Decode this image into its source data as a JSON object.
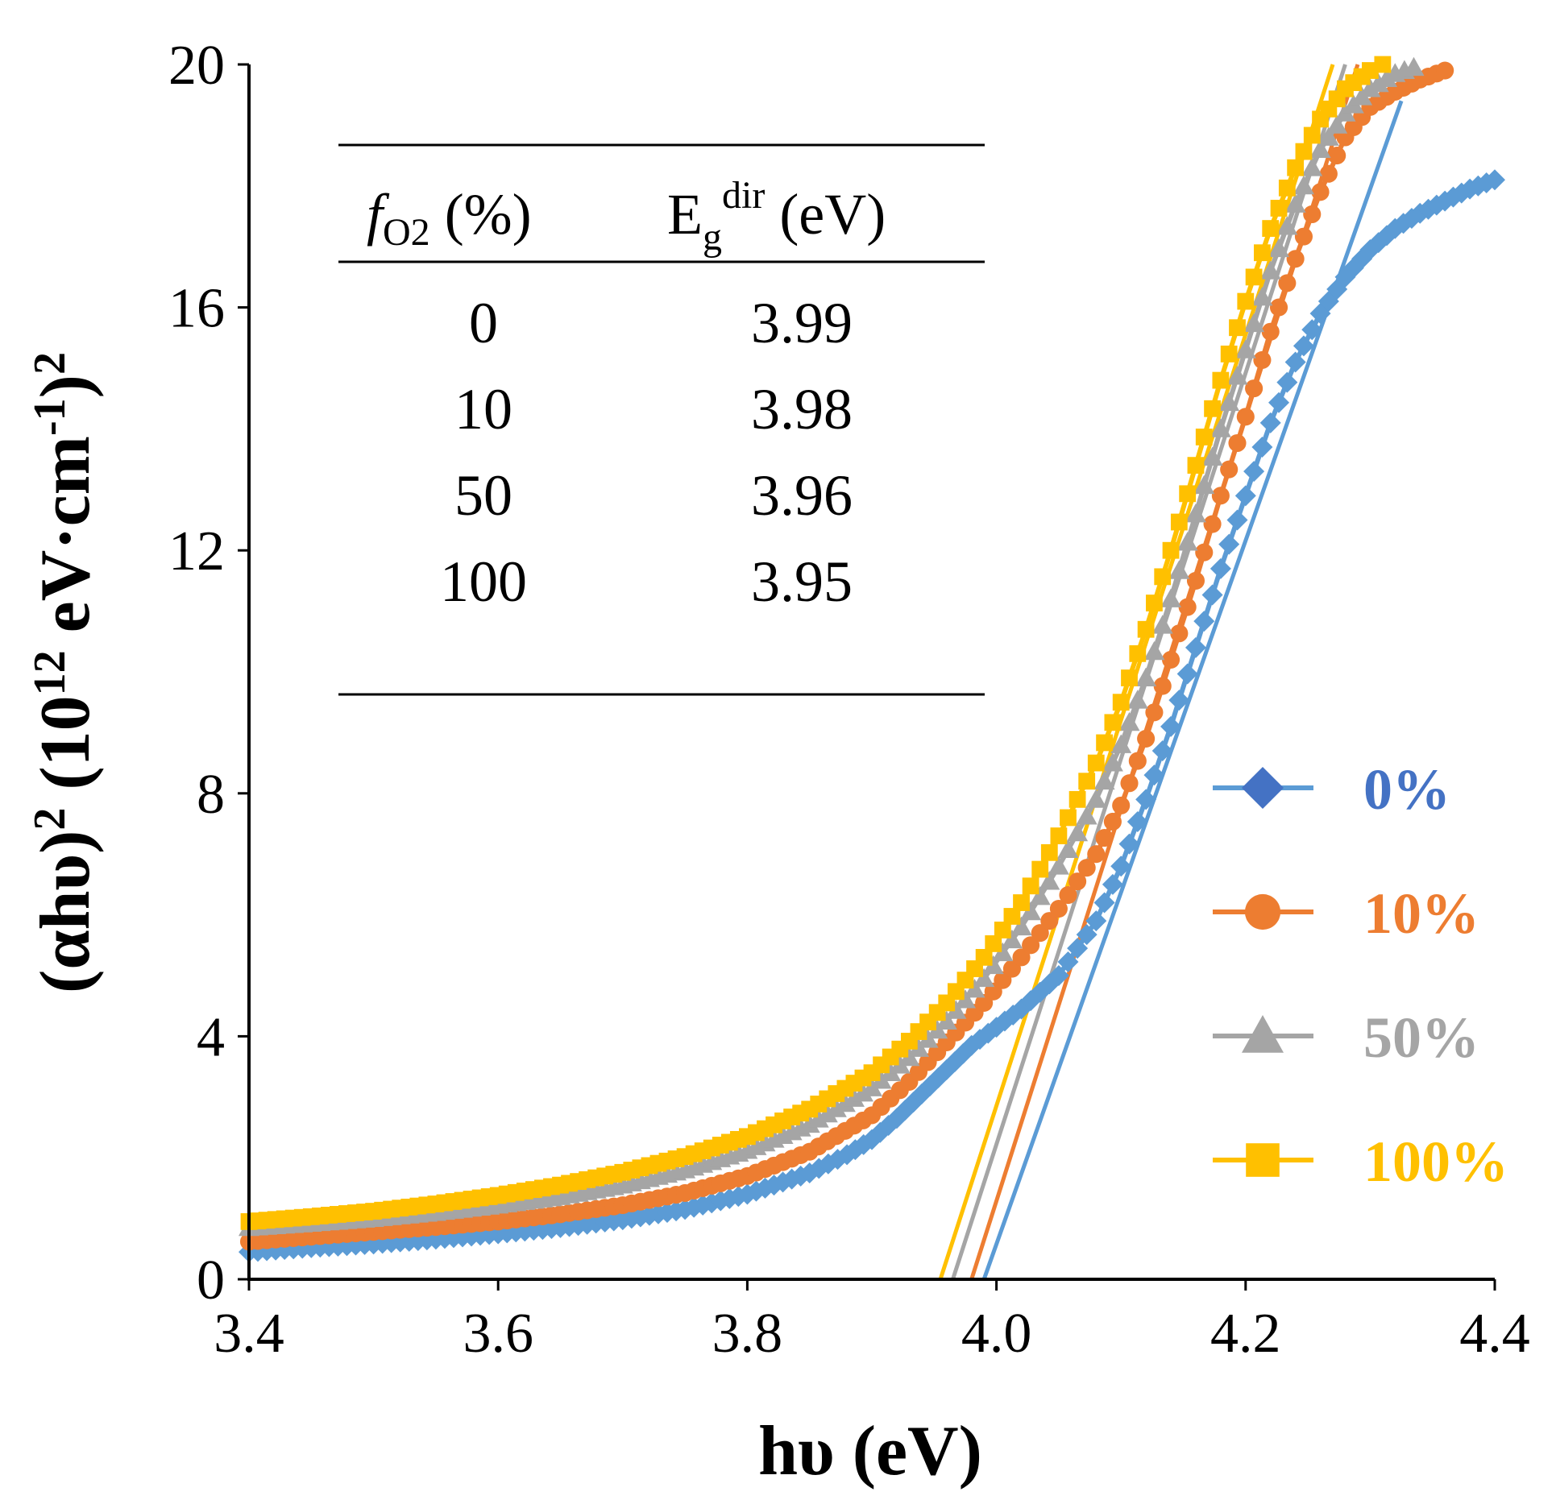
{
  "chart_data": {
    "type": "line",
    "xlabel": "hυ (eV)",
    "ylabel": {
      "base": "(αhυ)",
      "sup1": "2",
      "mid": " (10",
      "sup2": "12",
      "unit": " eV·cm",
      "sup3": "-1",
      "close": ")",
      "sup4": "2"
    },
    "xlim": [
      3.4,
      4.4
    ],
    "ylim": [
      0,
      20
    ],
    "x_ticks": [
      "3.4",
      "3.6",
      "3.8",
      "4.0",
      "4.2",
      "4.4"
    ],
    "y_ticks": [
      "0",
      "4",
      "8",
      "12",
      "16",
      "20"
    ],
    "grid": false,
    "legend_position": "right",
    "series": [
      {
        "name": "0%",
        "color": "#5B9BD5",
        "legend_color": "#4472C4",
        "marker": "diamond",
        "x": [
          3.4,
          3.45,
          3.5,
          3.55,
          3.6,
          3.65,
          3.7,
          3.75,
          3.8,
          3.85,
          3.88,
          3.9,
          3.92,
          3.94,
          3.96,
          3.98,
          4.0,
          4.02,
          4.05,
          4.08,
          4.1,
          4.12,
          4.14,
          4.16,
          4.18,
          4.2,
          4.22,
          4.24,
          4.26,
          4.28,
          4.3,
          4.32,
          4.34,
          4.36,
          4.38,
          4.4
        ],
        "y": [
          0.45,
          0.52,
          0.58,
          0.66,
          0.75,
          0.85,
          0.98,
          1.15,
          1.4,
          1.75,
          2.05,
          2.3,
          2.65,
          3.05,
          3.45,
          3.85,
          4.15,
          4.45,
          5.0,
          5.9,
          6.8,
          7.9,
          9.1,
          10.4,
          11.7,
          12.9,
          14.1,
          15.1,
          15.9,
          16.5,
          16.95,
          17.3,
          17.55,
          17.75,
          17.95,
          18.1
        ]
      },
      {
        "name": "10%",
        "color": "#ED7D31",
        "legend_color": "#ED7D31",
        "marker": "circle",
        "x": [
          3.4,
          3.45,
          3.5,
          3.55,
          3.6,
          3.65,
          3.7,
          3.75,
          3.8,
          3.85,
          3.9,
          3.93,
          3.96,
          3.99,
          4.02,
          4.05,
          4.08,
          4.1,
          4.12,
          4.14,
          4.16,
          4.18,
          4.2,
          4.22,
          4.24,
          4.26,
          4.28,
          4.3,
          4.32,
          4.34,
          4.36
        ],
        "y": [
          0.62,
          0.7,
          0.78,
          0.86,
          0.95,
          1.07,
          1.22,
          1.42,
          1.7,
          2.1,
          2.7,
          3.25,
          3.9,
          4.55,
          5.3,
          6.1,
          7.0,
          7.8,
          8.9,
          10.2,
          11.5,
          12.9,
          14.2,
          15.6,
          16.8,
          17.9,
          18.8,
          19.3,
          19.55,
          19.75,
          19.9
        ]
      },
      {
        "name": "50%",
        "color": "#A5A5A5",
        "legend_color": "#A5A5A5",
        "marker": "triangle",
        "x": [
          3.4,
          3.45,
          3.5,
          3.55,
          3.6,
          3.65,
          3.7,
          3.75,
          3.8,
          3.85,
          3.9,
          3.93,
          3.96,
          3.99,
          4.02,
          4.05,
          4.08,
          4.1,
          4.12,
          4.14,
          4.16,
          4.18,
          4.2,
          4.22,
          4.24,
          4.26,
          4.28,
          4.3,
          4.32,
          4.335
        ],
        "y": [
          0.85,
          0.92,
          1.0,
          1.1,
          1.22,
          1.36,
          1.55,
          1.8,
          2.12,
          2.55,
          3.15,
          3.65,
          4.25,
          4.95,
          5.8,
          6.8,
          7.9,
          8.8,
          9.9,
          11.2,
          12.6,
          14.0,
          15.3,
          16.6,
          17.7,
          18.6,
          19.2,
          19.6,
          19.85,
          19.95
        ]
      },
      {
        "name": "100%",
        "color": "#FFC000",
        "legend_color": "#FFC000",
        "marker": "square",
        "x": [
          3.4,
          3.45,
          3.5,
          3.55,
          3.6,
          3.65,
          3.7,
          3.75,
          3.8,
          3.85,
          3.9,
          3.93,
          3.96,
          3.99,
          4.02,
          4.05,
          4.08,
          4.1,
          4.12,
          4.14,
          4.16,
          4.18,
          4.2,
          4.22,
          4.24,
          4.26,
          4.28,
          4.3,
          4.31
        ],
        "y": [
          0.95,
          1.03,
          1.12,
          1.24,
          1.38,
          1.55,
          1.76,
          2.02,
          2.35,
          2.8,
          3.4,
          3.92,
          4.55,
          5.3,
          6.2,
          7.3,
          8.5,
          9.5,
          10.7,
          12.0,
          13.4,
          14.8,
          16.1,
          17.3,
          18.3,
          19.1,
          19.6,
          19.9,
          20.0
        ]
      }
    ],
    "fit_lines": [
      {
        "name": "0% fit",
        "color": "#5B9BD5",
        "x": [
          3.99,
          4.325
        ],
        "y": [
          0,
          19.4
        ]
      },
      {
        "name": "10% fit",
        "color": "#ED7D31",
        "x": [
          3.98,
          4.29
        ],
        "y": [
          0,
          20.0
        ]
      },
      {
        "name": "50% fit",
        "color": "#A5A5A5",
        "x": [
          3.965,
          4.28
        ],
        "y": [
          0,
          20.0
        ]
      },
      {
        "name": "100% fit",
        "color": "#FFC000",
        "x": [
          3.955,
          4.27
        ],
        "y": [
          0,
          20.0
        ]
      }
    ],
    "inset_table": {
      "header_col1_f": "f",
      "header_col1_sub": "O2",
      "header_col1_rest": " (%)",
      "header_col2_E": "E",
      "header_col2_sub": "g",
      "header_col2_sup": "dir",
      "header_col2_rest": " (eV)",
      "rows": [
        {
          "f": "0",
          "e": "3.99"
        },
        {
          "f": "10",
          "e": "3.98"
        },
        {
          "f": "50",
          "e": "3.96"
        },
        {
          "f": "100",
          "e": "3.95"
        }
      ]
    }
  }
}
